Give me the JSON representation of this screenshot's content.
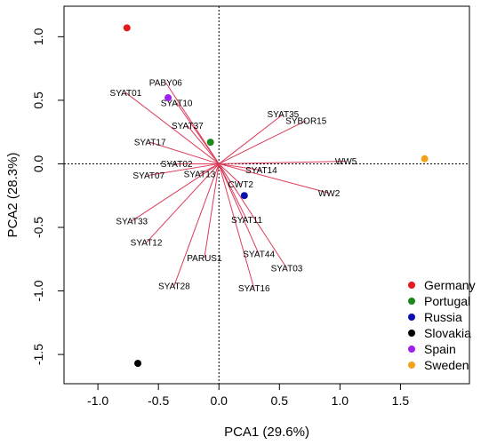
{
  "chart_data": {
    "type": "scatter",
    "subtype": "pca-biplot",
    "xlabel": "PCA1 (29.6%)",
    "ylabel": "PCA2 (28.3%)",
    "xlim": [
      -1.28,
      2.07
    ],
    "ylim": [
      -1.73,
      1.24
    ],
    "x_ticks": [
      -1.0,
      -0.5,
      0.0,
      0.5,
      1.0,
      1.5
    ],
    "x_tick_labels": [
      "-1.0",
      "-0.5",
      "0.0",
      "0.5",
      "1.0",
      "1.5"
    ],
    "y_ticks": [
      -1.5,
      -1.0,
      -0.5,
      0.0,
      0.5,
      1.0
    ],
    "y_tick_labels": [
      "-1.5",
      "-1.0",
      "-0.5",
      "0.0",
      "0.5",
      "1.0"
    ],
    "grid": false,
    "reference_lines": {
      "x": 0,
      "y": 0,
      "style": "dotted"
    },
    "legend_position": "bottom-right",
    "series": [
      {
        "name": "Germany",
        "color": "#e41a1c",
        "x": [
          -0.76
        ],
        "y": [
          1.07
        ]
      },
      {
        "name": "Portugal",
        "color": "#1a8a1a",
        "x": [
          -0.07
        ],
        "y": [
          0.17
        ]
      },
      {
        "name": "Russia",
        "color": "#0a10b0",
        "x": [
          0.21
        ],
        "y": [
          -0.25
        ]
      },
      {
        "name": "Slovakia",
        "color": "#000000",
        "x": [
          -0.67
        ],
        "y": [
          -1.57
        ]
      },
      {
        "name": "Spain",
        "color": "#a020f0",
        "x": [
          -0.42
        ],
        "y": [
          0.52
        ]
      },
      {
        "name": "Sweden",
        "color": "#f4a11a",
        "x": [
          1.7
        ],
        "y": [
          0.04
        ]
      }
    ],
    "vector_color": "#dc3c5a",
    "vectors": [
      {
        "name": "PABY06",
        "x": -0.44,
        "y": 0.64
      },
      {
        "name": "SYAT01",
        "x": -0.77,
        "y": 0.56
      },
      {
        "name": "SYAT10",
        "x": -0.35,
        "y": 0.48
      },
      {
        "name": "SYAT37",
        "x": -0.26,
        "y": 0.3
      },
      {
        "name": "SYAT17",
        "x": -0.57,
        "y": 0.17
      },
      {
        "name": "SYAT35",
        "x": 0.53,
        "y": 0.39
      },
      {
        "name": "SYBOR15",
        "x": 0.72,
        "y": 0.34
      },
      {
        "name": "SYAT02",
        "x": -0.35,
        "y": 0.0
      },
      {
        "name": "SYAT07",
        "x": -0.58,
        "y": -0.09
      },
      {
        "name": "SYAT13",
        "x": -0.16,
        "y": -0.08
      },
      {
        "name": "WW5",
        "x": 1.05,
        "y": 0.02
      },
      {
        "name": "SYAT14",
        "x": 0.35,
        "y": -0.05
      },
      {
        "name": "CWT2",
        "x": 0.18,
        "y": -0.16
      },
      {
        "name": "WW2",
        "x": 0.91,
        "y": -0.23
      },
      {
        "name": "SYAT33",
        "x": -0.72,
        "y": -0.45
      },
      {
        "name": "SYAT11",
        "x": 0.23,
        "y": -0.44
      },
      {
        "name": "SYAT12",
        "x": -0.6,
        "y": -0.62
      },
      {
        "name": "PARUS1",
        "x": -0.12,
        "y": -0.74
      },
      {
        "name": "SYAT44",
        "x": 0.33,
        "y": -0.71
      },
      {
        "name": "SYAT03",
        "x": 0.56,
        "y": -0.82
      },
      {
        "name": "SYAT28",
        "x": -0.37,
        "y": -0.96
      },
      {
        "name": "SYAT16",
        "x": 0.29,
        "y": -0.98
      }
    ]
  }
}
